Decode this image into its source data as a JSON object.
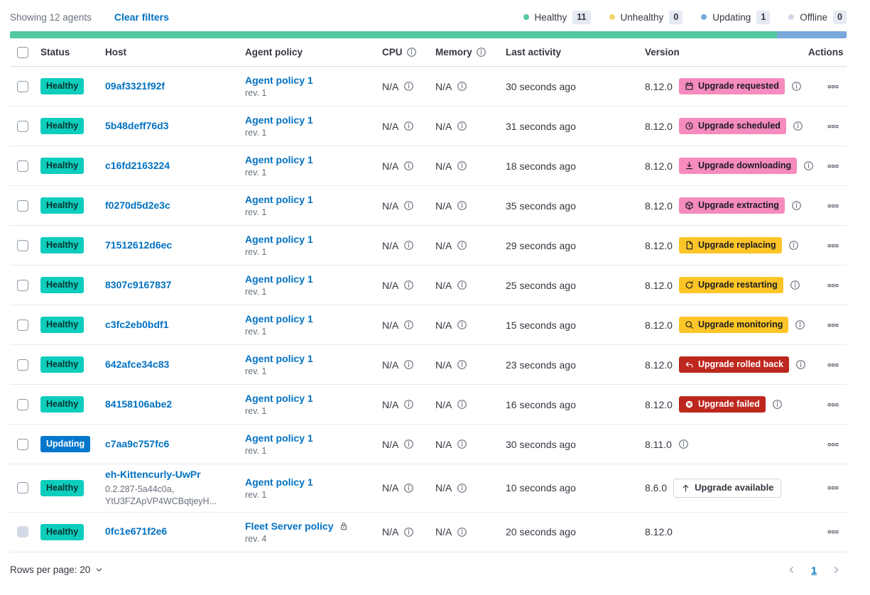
{
  "header": {
    "showing": "Showing 12 agents",
    "clear_filters": "Clear filters",
    "legend": [
      {
        "label": "Healthy",
        "count": "11",
        "color": "#54C8A0"
      },
      {
        "label": "Unhealthy",
        "count": "0",
        "color": "#F1D86F"
      },
      {
        "label": "Updating",
        "count": "1",
        "color": "#79A8DB"
      },
      {
        "label": "Offline",
        "count": "0",
        "color": "#D3DAE6"
      }
    ],
    "healthbar": [
      {
        "status": "healthy",
        "color": "#54C8A0",
        "fraction": 0.9167
      },
      {
        "status": "updating",
        "color": "#79A8DB",
        "fraction": 0.0833
      }
    ]
  },
  "colors": {
    "link": "#0071C2",
    "healthy_badge": "#0DCDBD",
    "updating_badge": "#0077CC",
    "pink_badge": "#F68BBE",
    "warning_badge": "#FDC528",
    "danger_badge": "#BD271E"
  },
  "table": {
    "columns": {
      "status": "Status",
      "host": "Host",
      "policy": "Agent policy",
      "cpu": "CPU",
      "memory": "Memory",
      "last_activity": "Last activity",
      "version": "Version",
      "actions": "Actions"
    },
    "rows": [
      {
        "status": {
          "label": "Healthy",
          "kind": "healthy"
        },
        "host": {
          "name": "09af3321f92f",
          "sub": []
        },
        "policy": {
          "name": "Agent policy 1",
          "rev": "rev. 1",
          "locked": false
        },
        "cpu": "N/A",
        "memory": "N/A",
        "last_activity": "30 seconds ago",
        "version": "8.12.0",
        "upgrade": {
          "label": "Upgrade requested",
          "kind": "pink",
          "icon": "calendar-icon"
        },
        "info": true,
        "checkbox_disabled": false
      },
      {
        "status": {
          "label": "Healthy",
          "kind": "healthy"
        },
        "host": {
          "name": "5b48deff76d3",
          "sub": []
        },
        "policy": {
          "name": "Agent policy 1",
          "rev": "rev. 1",
          "locked": false
        },
        "cpu": "N/A",
        "memory": "N/A",
        "last_activity": "31 seconds ago",
        "version": "8.12.0",
        "upgrade": {
          "label": "Upgrade scheduled",
          "kind": "pink",
          "icon": "clock-icon"
        },
        "info": true,
        "checkbox_disabled": false
      },
      {
        "status": {
          "label": "Healthy",
          "kind": "healthy"
        },
        "host": {
          "name": "c16fd2163224",
          "sub": []
        },
        "policy": {
          "name": "Agent policy 1",
          "rev": "rev. 1",
          "locked": false
        },
        "cpu": "N/A",
        "memory": "N/A",
        "last_activity": "18 seconds ago",
        "version": "8.12.0",
        "upgrade": {
          "label": "Upgrade downloading",
          "kind": "pink",
          "icon": "download-icon"
        },
        "info": true,
        "checkbox_disabled": false
      },
      {
        "status": {
          "label": "Healthy",
          "kind": "healthy"
        },
        "host": {
          "name": "f0270d5d2e3c",
          "sub": []
        },
        "policy": {
          "name": "Agent policy 1",
          "rev": "rev. 1",
          "locked": false
        },
        "cpu": "N/A",
        "memory": "N/A",
        "last_activity": "35 seconds ago",
        "version": "8.12.0",
        "upgrade": {
          "label": "Upgrade extracting",
          "kind": "pink",
          "icon": "package-icon"
        },
        "info": true,
        "checkbox_disabled": false
      },
      {
        "status": {
          "label": "Healthy",
          "kind": "healthy"
        },
        "host": {
          "name": "71512612d6ec",
          "sub": []
        },
        "policy": {
          "name": "Agent policy 1",
          "rev": "rev. 1",
          "locked": false
        },
        "cpu": "N/A",
        "memory": "N/A",
        "last_activity": "29 seconds ago",
        "version": "8.12.0",
        "upgrade": {
          "label": "Upgrade replacing",
          "kind": "yellow",
          "icon": "document-icon"
        },
        "info": true,
        "checkbox_disabled": false
      },
      {
        "status": {
          "label": "Healthy",
          "kind": "healthy"
        },
        "host": {
          "name": "8307c9167837",
          "sub": []
        },
        "policy": {
          "name": "Agent policy 1",
          "rev": "rev. 1",
          "locked": false
        },
        "cpu": "N/A",
        "memory": "N/A",
        "last_activity": "25 seconds ago",
        "version": "8.12.0",
        "upgrade": {
          "label": "Upgrade restarting",
          "kind": "yellow",
          "icon": "refresh-icon"
        },
        "info": true,
        "checkbox_disabled": false
      },
      {
        "status": {
          "label": "Healthy",
          "kind": "healthy"
        },
        "host": {
          "name": "c3fc2eb0bdf1",
          "sub": []
        },
        "policy": {
          "name": "Agent policy 1",
          "rev": "rev. 1",
          "locked": false
        },
        "cpu": "N/A",
        "memory": "N/A",
        "last_activity": "15 seconds ago",
        "version": "8.12.0",
        "upgrade": {
          "label": "Upgrade monitoring",
          "kind": "yellow",
          "icon": "inspect-icon"
        },
        "info": true,
        "checkbox_disabled": false
      },
      {
        "status": {
          "label": "Healthy",
          "kind": "healthy"
        },
        "host": {
          "name": "642afce34c83",
          "sub": []
        },
        "policy": {
          "name": "Agent policy 1",
          "rev": "rev. 1",
          "locked": false
        },
        "cpu": "N/A",
        "memory": "N/A",
        "last_activity": "23 seconds ago",
        "version": "8.12.0",
        "upgrade": {
          "label": "Upgrade rolled back",
          "kind": "red",
          "icon": "return-arrow-icon"
        },
        "info": true,
        "checkbox_disabled": false
      },
      {
        "status": {
          "label": "Healthy",
          "kind": "healthy"
        },
        "host": {
          "name": "84158106abe2",
          "sub": []
        },
        "policy": {
          "name": "Agent policy 1",
          "rev": "rev. 1",
          "locked": false
        },
        "cpu": "N/A",
        "memory": "N/A",
        "last_activity": "16 seconds ago",
        "version": "8.12.0",
        "upgrade": {
          "label": "Upgrade failed",
          "kind": "red",
          "icon": "cross-in-circle-icon"
        },
        "info": true,
        "checkbox_disabled": false
      },
      {
        "status": {
          "label": "Updating",
          "kind": "updating"
        },
        "host": {
          "name": "c7aa9c757fc6",
          "sub": []
        },
        "policy": {
          "name": "Agent policy 1",
          "rev": "rev. 1",
          "locked": false
        },
        "cpu": "N/A",
        "memory": "N/A",
        "last_activity": "30 seconds ago",
        "version": "8.11.0",
        "upgrade": null,
        "info": true,
        "checkbox_disabled": false
      },
      {
        "status": {
          "label": "Healthy",
          "kind": "healthy"
        },
        "host": {
          "name": "eh-Kittencurly-UwPr",
          "sub": [
            "0.2.287-5a44c0a,",
            "YtU3FZApVP4WCBqtjeyH..."
          ]
        },
        "policy": {
          "name": "Agent policy 1",
          "rev": "rev. 1",
          "locked": false
        },
        "cpu": "N/A",
        "memory": "N/A",
        "last_activity": "10 seconds ago",
        "version": "8.6.0",
        "upgrade": {
          "label": "Upgrade available",
          "kind": "hollow",
          "icon": "arrow-up-icon"
        },
        "info": false,
        "checkbox_disabled": false
      },
      {
        "status": {
          "label": "Healthy",
          "kind": "healthy"
        },
        "host": {
          "name": "0fc1e671f2e6",
          "sub": []
        },
        "policy": {
          "name": "Fleet Server policy",
          "rev": "rev. 4",
          "locked": true
        },
        "cpu": "N/A",
        "memory": "N/A",
        "last_activity": "20 seconds ago",
        "version": "8.12.0",
        "upgrade": null,
        "info": false,
        "checkbox_disabled": true
      }
    ]
  },
  "footer": {
    "rows_per_page": "Rows per page: 20",
    "page": "1"
  }
}
